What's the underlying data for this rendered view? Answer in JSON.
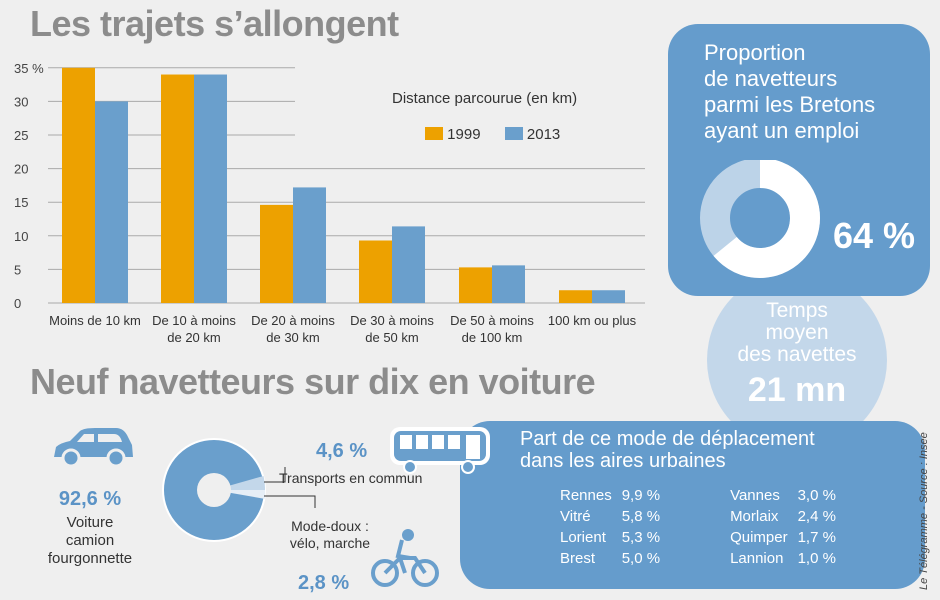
{
  "title1": "Les trajets s’allongent",
  "title2": "Neuf navetteurs sur dix en voiture",
  "chart_data": {
    "type": "bar",
    "title": "",
    "legend_title": "Distance parcourue (en km)",
    "legend_position": "top-right",
    "categories": [
      "Moins de 10 km",
      "De 10 à moins de 20 km",
      "De 20 à moins de 30 km",
      "De 30 à moins de 50 km",
      "De 50 à moins de 100 km",
      "100 km ou plus"
    ],
    "series": [
      {
        "name": "1999",
        "color": "#eda100",
        "values": [
          35,
          34,
          14.6,
          9.3,
          5.3,
          1.9
        ]
      },
      {
        "name": "2013",
        "color": "#6a9fcc",
        "values": [
          30,
          34,
          17.2,
          11.4,
          5.6,
          1.9
        ]
      }
    ],
    "yticks": [
      "0",
      "5",
      "10",
      "15",
      "20",
      "25",
      "30",
      "35 %"
    ],
    "ylim": [
      0,
      35
    ],
    "grid": true
  },
  "proportion": {
    "title_lines": [
      "Proportion",
      "de navetteurs",
      "parmi les Bretons",
      "ayant un emploi"
    ],
    "value": "64 %",
    "fraction": 0.64
  },
  "temps": {
    "label_lines": [
      "Temps",
      "moyen",
      "des navettes"
    ],
    "value": "21 mn"
  },
  "modes": {
    "voiture": {
      "value": "92,6 %",
      "label_lines": [
        "Voiture",
        "camion",
        "fourgonnette"
      ]
    },
    "transports": {
      "value": "4,6 %",
      "label": "Transports en commun"
    },
    "doux": {
      "value": "2,8 %",
      "label_lines": [
        "Mode-doux :",
        "vélo, marche"
      ]
    }
  },
  "urbain": {
    "title_lines": [
      "Part de ce mode de déplacement",
      "dans les aires urbaines"
    ],
    "rows": [
      [
        "Rennes",
        "9,9 %",
        "Vannes",
        "3,0 %"
      ],
      [
        "Vitré",
        "5,8 %",
        "Morlaix",
        "2,4 %"
      ],
      [
        "Lorient",
        "5,3 %",
        "Quimper",
        "1,7 %"
      ],
      [
        "Brest",
        "5,0 %",
        "Lannion",
        "1,0 %"
      ]
    ]
  },
  "credit": "Le Télégramme - Source : Insee"
}
